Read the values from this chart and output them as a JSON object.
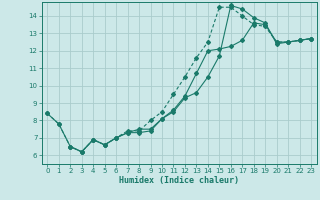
{
  "xlabel": "Humidex (Indice chaleur)",
  "bg_color": "#cce8e8",
  "grid_color": "#aacccc",
  "line_color": "#1a7a6a",
  "xlim": [
    -0.5,
    23.5
  ],
  "ylim": [
    5.5,
    14.8
  ],
  "yticks": [
    6,
    7,
    8,
    9,
    10,
    11,
    12,
    13,
    14
  ],
  "xticks": [
    0,
    1,
    2,
    3,
    4,
    5,
    6,
    7,
    8,
    9,
    10,
    11,
    12,
    13,
    14,
    15,
    16,
    17,
    18,
    19,
    20,
    21,
    22,
    23
  ],
  "line1_x": [
    0,
    1,
    2,
    3,
    4,
    5,
    6,
    7,
    8,
    9,
    10,
    11,
    12,
    13,
    14,
    15,
    16,
    17,
    18,
    19,
    20,
    21,
    22,
    23
  ],
  "line1_y": [
    8.4,
    7.8,
    6.5,
    6.2,
    6.9,
    6.6,
    7.0,
    7.3,
    7.3,
    7.4,
    8.1,
    8.5,
    9.3,
    9.6,
    10.5,
    11.7,
    14.6,
    14.4,
    13.9,
    13.6,
    12.4,
    12.5,
    12.6,
    12.7
  ],
  "line2_x": [
    0,
    1,
    2,
    3,
    4,
    5,
    6,
    7,
    8,
    9,
    10,
    11,
    12,
    13,
    14,
    15,
    16,
    17,
    18,
    19,
    20,
    21,
    22,
    23
  ],
  "line2_y": [
    8.4,
    7.8,
    6.5,
    6.2,
    6.9,
    6.6,
    7.0,
    7.4,
    7.4,
    8.0,
    8.5,
    9.5,
    10.5,
    11.6,
    12.5,
    14.5,
    14.5,
    14.0,
    13.5,
    13.4,
    12.5,
    12.5,
    12.6,
    12.7
  ],
  "line3_x": [
    2,
    3,
    4,
    5,
    6,
    7,
    8,
    9,
    10,
    11,
    12,
    13,
    14,
    15,
    16,
    17,
    18,
    19,
    20,
    21,
    22,
    23
  ],
  "line3_y": [
    6.5,
    6.2,
    6.9,
    6.6,
    7.0,
    7.3,
    7.5,
    7.5,
    8.1,
    8.6,
    9.4,
    10.7,
    12.0,
    12.1,
    12.25,
    12.6,
    13.6,
    13.5,
    12.5,
    12.5,
    12.6,
    12.7
  ]
}
